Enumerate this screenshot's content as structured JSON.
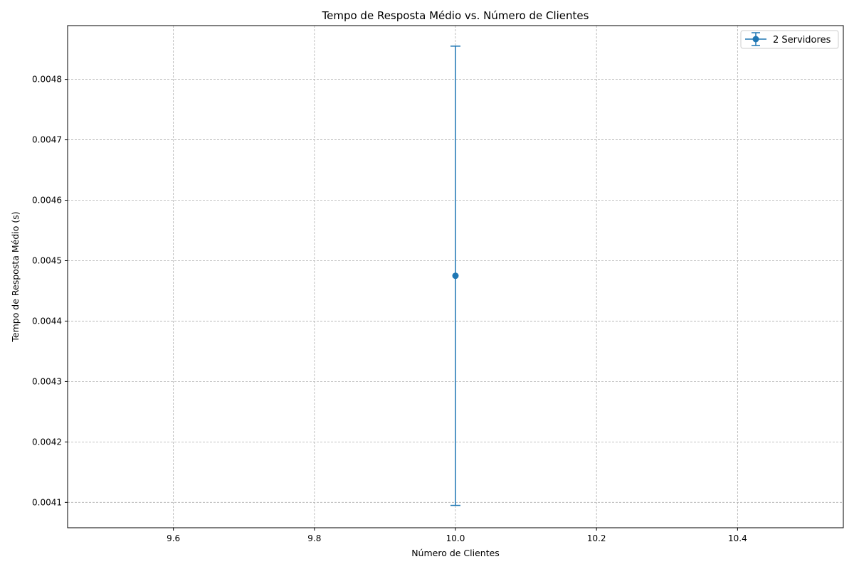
{
  "chart_data": {
    "type": "scatter",
    "title": "Tempo de Resposta Médio vs. Número de Clientes",
    "xlabel": "Número de Clientes",
    "ylabel": "Tempo de Resposta Médio (s)",
    "xlim": [
      9.45,
      10.55
    ],
    "ylim": [
      0.004058,
      0.004889
    ],
    "xticks": [
      9.6,
      9.8,
      10.0,
      10.2,
      10.4
    ],
    "xtick_labels": [
      "9.6",
      "9.8",
      "10.0",
      "10.2",
      "10.4"
    ],
    "yticks": [
      0.0041,
      0.0042,
      0.0043,
      0.0044,
      0.0045,
      0.0046,
      0.0047,
      0.0048
    ],
    "ytick_labels": [
      "0.0041",
      "0.0042",
      "0.0043",
      "0.0044",
      "0.0045",
      "0.0046",
      "0.0047",
      "0.0048"
    ],
    "grid": true,
    "legend_position": "top-right",
    "series": [
      {
        "name": "2 Servidores",
        "color": "#1f77b4",
        "marker": "circle",
        "points": [
          {
            "x": 10.0,
            "y": 0.004475,
            "err_low": 0.004095,
            "err_high": 0.004855
          }
        ]
      }
    ]
  }
}
